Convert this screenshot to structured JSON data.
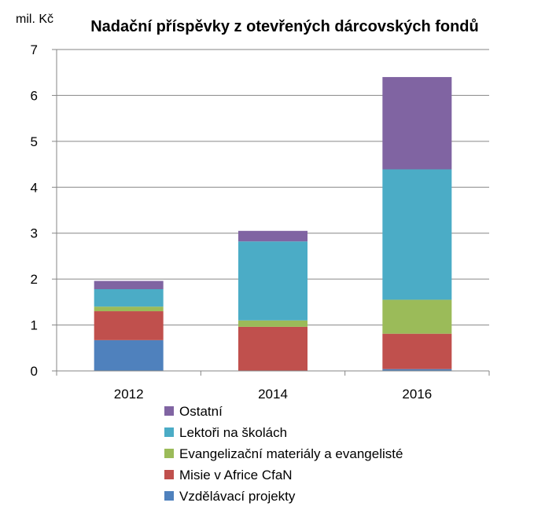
{
  "chart_data": {
    "type": "bar",
    "stacked": true,
    "title": "Nadační příspěvky z otevřených dárcovských fondů",
    "ylabel": "mil. Kč",
    "xlabel": "",
    "categories": [
      "2012",
      "2014",
      "2016"
    ],
    "ylim": [
      0,
      7
    ],
    "yticks": [
      "0",
      "1",
      "2",
      "3",
      "4",
      "5",
      "6",
      "7"
    ],
    "grid": true,
    "legend_position": "bottom",
    "series": [
      {
        "name": "Vzdělávací projekty",
        "color": "#4f81bd",
        "values": [
          0.67,
          0.0,
          0.04
        ]
      },
      {
        "name": "Misie v Africe CfaN",
        "color": "#c0504d",
        "values": [
          0.63,
          0.96,
          0.77
        ]
      },
      {
        "name": "Evangelizační materiály a evangelisté",
        "color": "#9bbb59",
        "values": [
          0.1,
          0.14,
          0.74
        ]
      },
      {
        "name": "Lektoři na školách",
        "color": "#4bacc6",
        "values": [
          0.38,
          1.72,
          2.84
        ]
      },
      {
        "name": "Ostatní",
        "color": "#8064a2",
        "values": [
          0.18,
          0.23,
          2.01
        ]
      }
    ]
  }
}
